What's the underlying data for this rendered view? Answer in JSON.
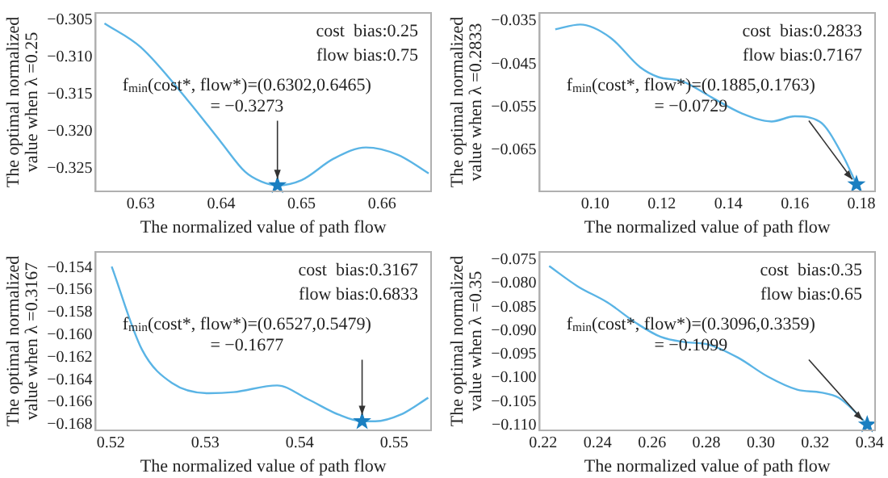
{
  "chart_data": [
    {
      "type": "line",
      "xlabel": "The normalized value of path flow",
      "ylabel": "The optimal normalized\nvalue when λ =0.25",
      "xlim": [
        0.6244,
        0.6661
      ],
      "ylim": [
        -0.3281,
        -0.3041
      ],
      "xticks": [
        {
          "value": 0.63,
          "label": "0.63"
        },
        {
          "value": 0.64,
          "label": "0.64"
        },
        {
          "value": 0.65,
          "label": "0.65"
        },
        {
          "value": 0.66,
          "label": "0.66"
        }
      ],
      "yticks": [
        {
          "value": -0.305,
          "label": "−0.305"
        },
        {
          "value": -0.31,
          "label": "−0.310"
        },
        {
          "value": -0.315,
          "label": "−0.315"
        },
        {
          "value": -0.32,
          "label": "−0.320"
        },
        {
          "value": -0.325,
          "label": "−0.325"
        }
      ],
      "series": [
        {
          "color": "#5ab4e5",
          "marker": "none",
          "x": [
            0.6255,
            0.63,
            0.6358,
            0.64,
            0.643,
            0.645,
            0.647,
            0.65,
            0.654,
            0.658,
            0.662,
            0.6658
          ],
          "values": [
            -0.3055,
            -0.3087,
            -0.3158,
            -0.3215,
            -0.3255,
            -0.3268,
            -0.3273,
            -0.3266,
            -0.3237,
            -0.3222,
            -0.3232,
            -0.3257
          ]
        },
        {
          "type": "scatter",
          "color": "#1a7fc1",
          "marker": "star",
          "x": [
            0.647
          ],
          "values": [
            -0.3273
          ]
        }
      ],
      "annotations": [
        "cost  bias:0.25",
        "flow bias:0.75",
        {
          "text": "f$_{min}$(cost*, flow*)=(0.6302,0.6465)\n= −0.3273",
          "x": 0.647,
          "y": -0.3273
        }
      ]
    },
    {
      "type": "line",
      "xlabel": "The normalized value of path flow",
      "ylabel": "The optimal normalized\nvalue when λ =0.2833",
      "xlim": [
        0.0833,
        0.1841
      ],
      "ylim": [
        -0.0745,
        -0.0331
      ],
      "xticks": [
        {
          "value": 0.1,
          "label": "0.10"
        },
        {
          "value": 0.12,
          "label": "0.12"
        },
        {
          "value": 0.14,
          "label": "0.14"
        },
        {
          "value": 0.16,
          "label": "0.16"
        },
        {
          "value": 0.18,
          "label": "0.18"
        }
      ],
      "yticks": [
        {
          "value": -0.035,
          "label": "−0.035"
        },
        {
          "value": -0.045,
          "label": "−0.045"
        },
        {
          "value": -0.055,
          "label": "−0.055"
        },
        {
          "value": -0.065,
          "label": "−0.065"
        }
      ],
      "series": [
        {
          "color": "#5ab4e5",
          "marker": "none",
          "x": [
            0.088,
            0.0955,
            0.1045,
            0.1135,
            0.119,
            0.126,
            0.135,
            0.144,
            0.153,
            0.16,
            0.1674,
            0.1746,
            0.1785
          ],
          "values": [
            -0.0369,
            -0.0358,
            -0.0388,
            -0.0457,
            -0.048,
            -0.0489,
            -0.0527,
            -0.0564,
            -0.0583,
            -0.0571,
            -0.0583,
            -0.0665,
            -0.0729
          ]
        },
        {
          "type": "scatter",
          "color": "#1a7fc1",
          "marker": "star",
          "x": [
            0.1785
          ],
          "values": [
            -0.0729
          ]
        }
      ],
      "annotations": [
        "cost  bias:0.2833",
        "flow bias:0.7167",
        {
          "text": "f$_{min}$(cost*, flow*)=(0.1885,0.1763)\n= −0.0729",
          "x": 0.1785,
          "y": -0.0729
        }
      ]
    },
    {
      "type": "line",
      "xlabel": "The normalized value of path flow",
      "ylabel": "The optimal normalized\nvalue when λ =0.3167",
      "xlim": [
        0.5184,
        0.5539
      ],
      "ylim": [
        -0.1685,
        -0.1526
      ],
      "xticks": [
        {
          "value": 0.52,
          "label": "0.52"
        },
        {
          "value": 0.53,
          "label": "0.53"
        },
        {
          "value": 0.54,
          "label": "0.54"
        },
        {
          "value": 0.55,
          "label": "0.55"
        }
      ],
      "yticks": [
        {
          "value": -0.154,
          "label": "−0.154"
        },
        {
          "value": -0.156,
          "label": "−0.156"
        },
        {
          "value": -0.158,
          "label": "−0.158"
        },
        {
          "value": -0.16,
          "label": "−0.160"
        },
        {
          "value": -0.162,
          "label": "−0.162"
        },
        {
          "value": -0.164,
          "label": "−0.164"
        },
        {
          "value": -0.166,
          "label": "−0.166"
        },
        {
          "value": -0.168,
          "label": "−0.168"
        }
      ],
      "series": [
        {
          "color": "#5ab4e5",
          "marker": "none",
          "x": [
            0.5201,
            0.5233,
            0.5265,
            0.5304,
            0.533,
            0.5376,
            0.5408,
            0.5441,
            0.5466,
            0.548,
            0.5507,
            0.5536
          ],
          "values": [
            -0.1539,
            -0.1613,
            -0.1643,
            -0.1652,
            -0.1651,
            -0.1645,
            -0.1657,
            -0.1671,
            -0.1677,
            -0.1677,
            -0.1671,
            -0.1656
          ]
        },
        {
          "type": "scatter",
          "color": "#1a7fc1",
          "marker": "star",
          "x": [
            0.5466
          ],
          "values": [
            -0.1677
          ]
        }
      ],
      "annotations": [
        "cost  bias:0.3167",
        "flow bias:0.6833",
        {
          "text": "f$_{min}$(cost*, flow*)=(0.6527,0.5479)\n= −0.1677",
          "x": 0.5466,
          "y": -0.1677
        }
      ]
    },
    {
      "type": "line",
      "xlabel": "The normalized value of path flow",
      "ylabel": "The optimal normalized\nvalue when λ =0.35",
      "xlim": [
        0.2187,
        0.342
      ],
      "ylim": [
        -0.1111,
        -0.0733
      ],
      "xticks": [
        {
          "value": 0.22,
          "label": "0.22"
        },
        {
          "value": 0.24,
          "label": "0.24"
        },
        {
          "value": 0.26,
          "label": "0.26"
        },
        {
          "value": 0.28,
          "label": "0.28"
        },
        {
          "value": 0.3,
          "label": "0.30"
        },
        {
          "value": 0.32,
          "label": "0.32"
        },
        {
          "value": 0.34,
          "label": "0.34"
        }
      ],
      "yticks": [
        {
          "value": -0.075,
          "label": "−0.075"
        },
        {
          "value": -0.08,
          "label": "−0.080"
        },
        {
          "value": -0.085,
          "label": "−0.085"
        },
        {
          "value": -0.09,
          "label": "−0.090"
        },
        {
          "value": -0.095,
          "label": "−0.095"
        },
        {
          "value": -0.1,
          "label": "−0.100"
        },
        {
          "value": -0.105,
          "label": "−0.105"
        },
        {
          "value": -0.11,
          "label": "−0.110"
        }
      ],
      "series": [
        {
          "color": "#5ab4e5",
          "marker": "none",
          "x": [
            0.2222,
            0.2327,
            0.2436,
            0.2545,
            0.2632,
            0.2719,
            0.2806,
            0.2916,
            0.3025,
            0.3134,
            0.3221,
            0.3286,
            0.3352,
            0.3391
          ],
          "values": [
            -0.0763,
            -0.0806,
            -0.084,
            -0.0885,
            -0.0913,
            -0.0924,
            -0.0929,
            -0.0957,
            -0.0997,
            -0.1025,
            -0.1031,
            -0.1042,
            -0.1075,
            -0.1099
          ]
        },
        {
          "type": "scatter",
          "color": "#1a7fc1",
          "marker": "star",
          "x": [
            0.3391
          ],
          "values": [
            -0.1099
          ]
        }
      ],
      "annotations": [
        "cost  bias:0.35",
        "flow bias:0.65",
        {
          "text": "f$_{min}$(cost*, flow*)=(0.3096,0.3359)\n= −0.1099",
          "x": 0.3391,
          "y": -0.1099
        }
      ]
    }
  ]
}
